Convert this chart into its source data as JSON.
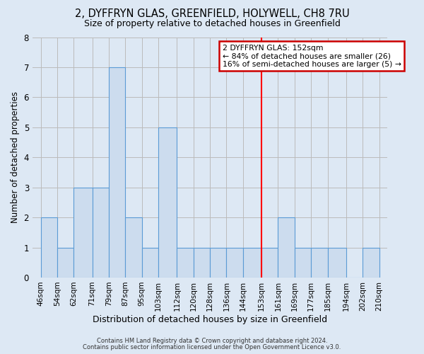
{
  "title": "2, DYFFRYN GLAS, GREENFIELD, HOLYWELL, CH8 7RU",
  "subtitle": "Size of property relative to detached houses in Greenfield",
  "xlabel": "Distribution of detached houses by size in Greenfield",
  "ylabel": "Number of detached properties",
  "bin_edges": [
    46,
    54,
    62,
    71,
    79,
    87,
    95,
    103,
    112,
    120,
    128,
    136,
    144,
    153,
    161,
    169,
    177,
    185,
    194,
    202,
    210
  ],
  "bar_heights": [
    2,
    1,
    3,
    3,
    7,
    2,
    1,
    5,
    1,
    1,
    1,
    1,
    1,
    1,
    2,
    1,
    1,
    1,
    0,
    1
  ],
  "bar_color": "#ccdcee",
  "bar_edge_color": "#5b9bd5",
  "bar_edge_width": 0.8,
  "grid_color": "#bbbbbb",
  "ylim": [
    0,
    8
  ],
  "yticks": [
    0,
    1,
    2,
    3,
    4,
    5,
    6,
    7,
    8
  ],
  "red_line_x": 153,
  "annotation_title": "2 DYFFRYN GLAS: 152sqm",
  "annotation_line1": "← 84% of detached houses are smaller (26)",
  "annotation_line2": "16% of semi-detached houses are larger (5) →",
  "annotation_box_color": "#ffffff",
  "annotation_border_color": "#cc0000",
  "footer_line1": "Contains HM Land Registry data © Crown copyright and database right 2024.",
  "footer_line2": "Contains public sector information licensed under the Open Government Licence v3.0.",
  "bg_color": "#dde8f4",
  "plot_bg_color": "#dde8f4"
}
